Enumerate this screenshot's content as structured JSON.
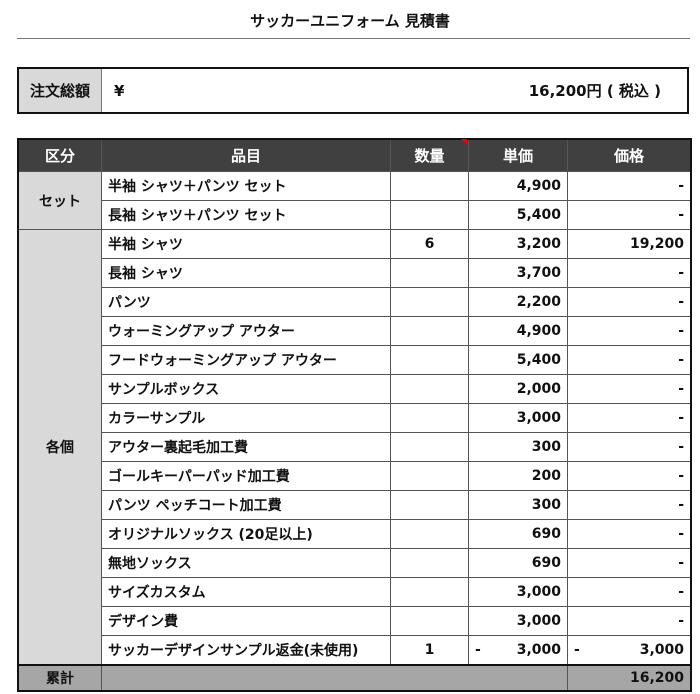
{
  "title": "サッカーユニフォーム 見積書",
  "summary": {
    "label": "注文総額",
    "currency": "¥",
    "amount": "16,200",
    "suffix": "円 ( 税込 )"
  },
  "headers": [
    "区分",
    "品目",
    "数量",
    "単価",
    "価格"
  ],
  "categories": {
    "set": "セット",
    "individual": "各個"
  },
  "rows": [
    {
      "item": "半袖 シャツ＋パンツ セット",
      "qty": "",
      "unit": "4,900",
      "price": "-"
    },
    {
      "item": "長袖 シャツ＋パンツ セット",
      "qty": "",
      "unit": "5,400",
      "price": "-"
    },
    {
      "item": "半袖 シャツ",
      "qty": "6",
      "unit": "3,200",
      "price": "19,200"
    },
    {
      "item": "長袖 シャツ",
      "qty": "",
      "unit": "3,700",
      "price": "-"
    },
    {
      "item": "パンツ",
      "qty": "",
      "unit": "2,200",
      "price": "-"
    },
    {
      "item": "ウォーミングアップ アウター",
      "qty": "",
      "unit": "4,900",
      "price": "-"
    },
    {
      "item": "フードウォーミングアップ アウター",
      "qty": "",
      "unit": "5,400",
      "price": "-"
    },
    {
      "item": "サンプルボックス",
      "qty": "",
      "unit": "2,000",
      "price": "-"
    },
    {
      "item": "カラーサンプル",
      "qty": "",
      "unit": "3,000",
      "price": "-"
    },
    {
      "item": "アウター裏起毛加工費",
      "qty": "",
      "unit": "300",
      "price": "-"
    },
    {
      "item": "ゴールキーパーパッド加工費",
      "qty": "",
      "unit": "200",
      "price": "-"
    },
    {
      "item": "パンツ ペッチコート加工費",
      "qty": "",
      "unit": "300",
      "price": "-"
    },
    {
      "item": "オリジナルソックス (20足以上)",
      "qty": "",
      "unit": "690",
      "price": "-"
    },
    {
      "item": "無地ソックス",
      "qty": "",
      "unit": "690",
      "price": "-"
    },
    {
      "item": "サイズカスタム",
      "qty": "",
      "unit": "3,000",
      "price": "-"
    },
    {
      "item": "デザイン費",
      "qty": "",
      "unit": "3,000",
      "price": "-"
    },
    {
      "item": "サッカーデザインサンプル返金(未使用)",
      "qty": "1",
      "unit": "3,000",
      "price": "3,000",
      "negative": true
    }
  ],
  "minus_sign": "-",
  "total": {
    "label": "累計",
    "amount": "16,200"
  }
}
